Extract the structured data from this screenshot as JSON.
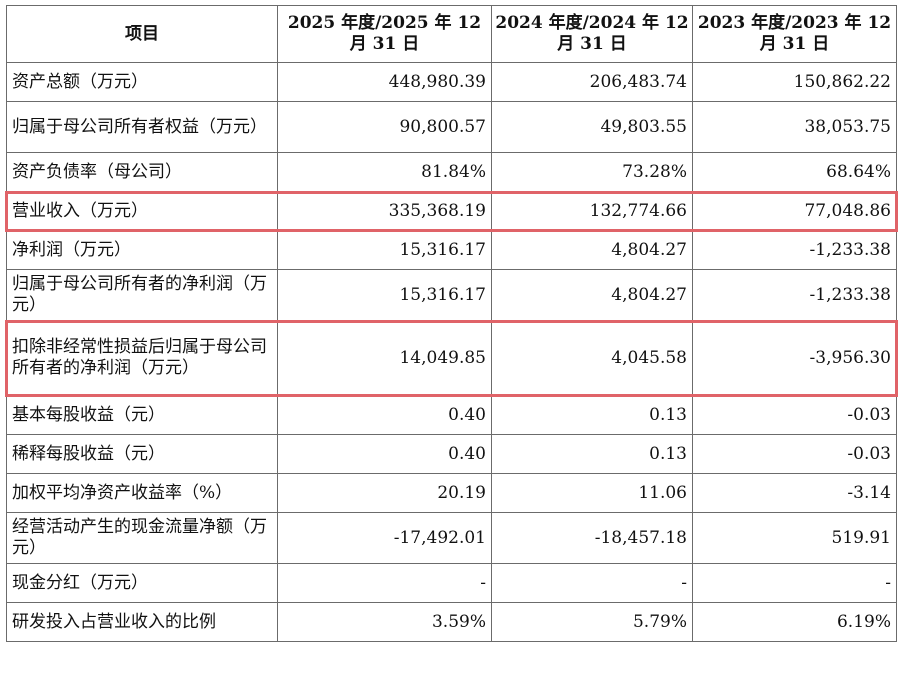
{
  "headers": [
    "项目",
    "2025 年度/2025 年 12 月 31 日",
    "2024 年度/2024 年 12 月 31 日",
    "2023 年度/2023 年 12 月 31 日"
  ],
  "rows": [
    {
      "label": "资产总额（万元）",
      "v2025": "448,980.39",
      "v2024": "206,483.74",
      "v2023": "150,862.22"
    },
    {
      "label": "归属于母公司所有者权益（万元）",
      "v2025": "90,800.57",
      "v2024": "49,803.55",
      "v2023": "38,053.75"
    },
    {
      "label": "资产负债率（母公司）",
      "v2025": "81.84%",
      "v2024": "73.28%",
      "v2023": "68.64%"
    },
    {
      "label": "营业收入（万元）",
      "v2025": "335,368.19",
      "v2024": "132,774.66",
      "v2023": "77,048.86"
    },
    {
      "label": "净利润（万元）",
      "v2025": "15,316.17",
      "v2024": "4,804.27",
      "v2023": "-1,233.38"
    },
    {
      "label": "归属于母公司所有者的净利润（万元）",
      "v2025": "15,316.17",
      "v2024": "4,804.27",
      "v2023": "-1,233.38"
    },
    {
      "label": "扣除非经常性损益后归属于母公司所有者的净利润（万元）",
      "v2025": "14,049.85",
      "v2024": "4,045.58",
      "v2023": "-3,956.30"
    },
    {
      "label": "基本每股收益（元）",
      "v2025": "0.40",
      "v2024": "0.13",
      "v2023": "-0.03"
    },
    {
      "label": "稀释每股收益（元）",
      "v2025": "0.40",
      "v2024": "0.13",
      "v2023": "-0.03"
    },
    {
      "label": "加权平均净资产收益率（%）",
      "v2025": "20.19",
      "v2024": "11.06",
      "v2023": "-3.14"
    },
    {
      "label": "经营活动产生的现金流量净额（万元）",
      "v2025": "-17,492.01",
      "v2024": "-18,457.18",
      "v2023": "519.91"
    },
    {
      "label": "现金分红（万元）",
      "v2025": "-",
      "v2024": "-",
      "v2023": "-"
    },
    {
      "label": "研发投入占营业收入的比例",
      "v2025": "3.59%",
      "v2024": "5.79%",
      "v2023": "6.19%"
    }
  ],
  "highlight_color": "#e06368",
  "border_color": "#6b6b6b"
}
